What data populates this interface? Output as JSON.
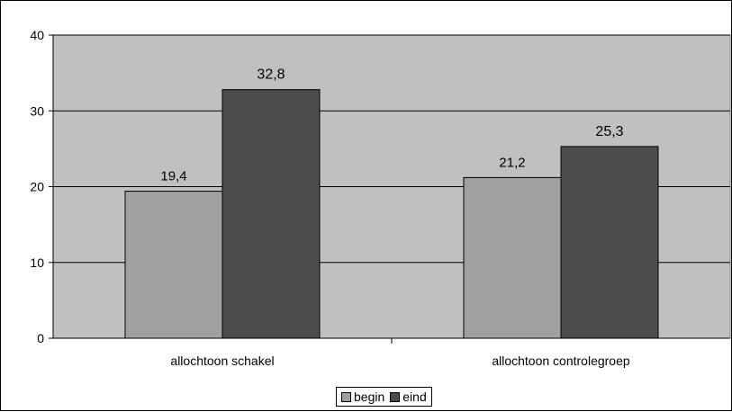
{
  "chart_data": {
    "type": "bar",
    "categories": [
      "allochtoon schakel",
      "allochtoon controlegroep"
    ],
    "series": [
      {
        "name": "begin",
        "values": [
          19.4,
          21.2
        ],
        "labels": [
          "19,4",
          "21,2"
        ],
        "color": "#a0a0a0"
      },
      {
        "name": "eind",
        "values": [
          32.8,
          25.3
        ],
        "labels": [
          "32,8",
          "25,3"
        ],
        "color": "#4d4d4d"
      }
    ],
    "ylim": [
      0,
      40
    ],
    "yticks": [
      0,
      10,
      20,
      30,
      40
    ],
    "grid": true,
    "plot_background": "#c0c0c0",
    "legend_position": "bottom"
  }
}
